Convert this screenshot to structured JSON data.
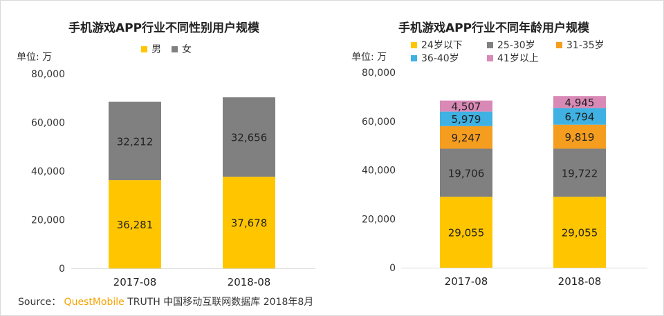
{
  "unit_label": "单位: 万",
  "source": {
    "prefix": "Source：",
    "brand": "QuestMobile",
    "text": "TRUTH 中国移动互联网数据库 2018年8月"
  },
  "chart_data": [
    {
      "type": "bar",
      "stacked": true,
      "title": "手机游戏APP行业不同性别用户规模",
      "ylabel": "单位: 万",
      "ylim": [
        0,
        80000
      ],
      "yticks": [
        "0",
        "20,000",
        "40,000",
        "60,000",
        "80,000"
      ],
      "categories": [
        "2017-08",
        "2018-08"
      ],
      "series": [
        {
          "name": "男",
          "color": "#ffc600",
          "values": [
            36281,
            37678
          ],
          "labels": [
            "36,281",
            "37,678"
          ]
        },
        {
          "name": "女",
          "color": "#808080",
          "values": [
            32212,
            32656
          ],
          "labels": [
            "32,212",
            "32,656"
          ]
        }
      ]
    },
    {
      "type": "bar",
      "stacked": true,
      "title": "手机游戏APP行业不同年龄用户规模",
      "ylabel": "单位: 万",
      "ylim": [
        0,
        80000
      ],
      "yticks": [
        "0",
        "20,000",
        "40,000",
        "60,000",
        "80,000"
      ],
      "categories": [
        "2017-08",
        "2018-08"
      ],
      "series": [
        {
          "name": "24岁以下",
          "color": "#ffc600",
          "values": [
            29055,
            29055
          ],
          "labels": [
            "29,055",
            "29,055"
          ]
        },
        {
          "name": "25-30岁",
          "color": "#808080",
          "values": [
            19706,
            19722
          ],
          "labels": [
            "19,706",
            "19,722"
          ]
        },
        {
          "name": "31-35岁",
          "color": "#f59d1f",
          "values": [
            9247,
            9819
          ],
          "labels": [
            "9,247",
            "9,819"
          ]
        },
        {
          "name": "36-40岁",
          "color": "#3fb1e2",
          "values": [
            5979,
            6794
          ],
          "labels": [
            "5,979",
            "6,794"
          ]
        },
        {
          "name": "41岁以上",
          "color": "#d989b5",
          "values": [
            4507,
            4945
          ],
          "labels": [
            "4,507",
            "4,945"
          ]
        }
      ]
    }
  ]
}
